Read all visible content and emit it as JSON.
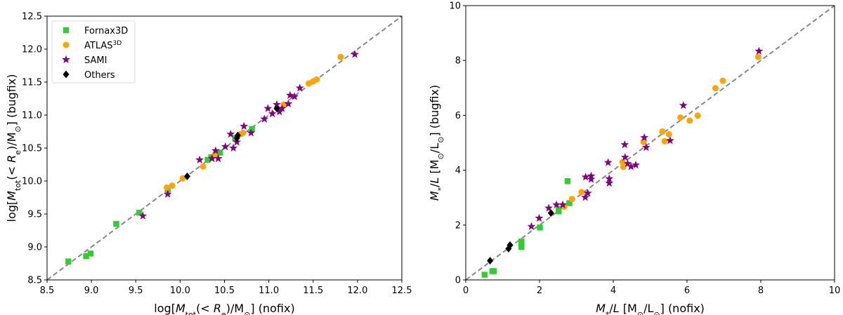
{
  "chart_data": [
    {
      "type": "scatter",
      "id": "left",
      "xlabel": {
        "pre": "log[",
        "M": "M",
        "sub": "tot",
        "mid": "(< ",
        "R": "R",
        "sub2": "e",
        "post": ")/M",
        "sun": "⊙",
        "end": "] (nofix)"
      },
      "ylabel": {
        "pre": "log[",
        "M": "M",
        "sub": "tot",
        "mid": "(< ",
        "R": "R",
        "sub2": "e",
        "post": ")/M",
        "sun": "⊙",
        "end": "] (bugfix)"
      },
      "xlim": [
        8.5,
        12.5
      ],
      "ylim": [
        8.5,
        12.5
      ],
      "xticks": [
        "8.5",
        "9.0",
        "9.5",
        "10.0",
        "10.5",
        "11.0",
        "11.5",
        "12.0",
        "12.5"
      ],
      "yticks": [
        "8.5",
        "9.0",
        "9.5",
        "10.0",
        "10.5",
        "11.0",
        "11.5",
        "12.0",
        "12.5"
      ],
      "one_to_one_line": true,
      "legend_position": "top-left",
      "series": [
        {
          "name": "Fornax3D",
          "sup": "",
          "marker": "square",
          "color": "#33cc33",
          "points": [
            [
              8.74,
              8.78
            ],
            [
              8.94,
              8.86
            ],
            [
              8.99,
              8.9
            ],
            [
              9.28,
              9.35
            ],
            [
              9.54,
              9.52
            ],
            [
              9.86,
              9.87
            ],
            [
              10.31,
              10.32
            ],
            [
              10.35,
              10.36
            ],
            [
              10.45,
              10.43
            ],
            [
              10.62,
              10.65
            ],
            [
              10.81,
              10.79
            ]
          ]
        },
        {
          "name": "ATLAS",
          "sup": "3D",
          "marker": "circle",
          "color": "#ffa500",
          "points": [
            [
              11.81,
              11.88
            ],
            [
              11.45,
              11.48
            ],
            [
              11.5,
              11.51
            ],
            [
              11.54,
              11.54
            ],
            [
              11.17,
              11.16
            ],
            [
              10.71,
              10.73
            ],
            [
              10.68,
              10.71
            ],
            [
              10.26,
              10.22
            ],
            [
              9.85,
              9.9
            ],
            [
              9.91,
              9.93
            ],
            [
              10.03,
              10.04
            ],
            [
              10.39,
              10.4
            ]
          ]
        },
        {
          "name": "SAMI",
          "sup": "",
          "marker": "star",
          "color": "#800080",
          "points": [
            [
              11.97,
              11.92
            ],
            [
              11.35,
              11.41
            ],
            [
              11.24,
              11.3
            ],
            [
              11.29,
              11.28
            ],
            [
              11.22,
              11.17
            ],
            [
              11.09,
              11.16
            ],
            [
              10.99,
              11.1
            ],
            [
              11.04,
              11.02
            ],
            [
              11.12,
              11.05
            ],
            [
              11.15,
              11.1
            ],
            [
              10.95,
              10.94
            ],
            [
              10.72,
              10.83
            ],
            [
              10.8,
              10.73
            ],
            [
              10.57,
              10.71
            ],
            [
              10.64,
              10.59
            ],
            [
              10.6,
              10.5
            ],
            [
              10.51,
              10.52
            ],
            [
              10.4,
              10.46
            ],
            [
              10.22,
              10.32
            ],
            [
              10.36,
              10.34
            ],
            [
              10.43,
              10.34
            ],
            [
              9.86,
              9.8
            ],
            [
              9.58,
              9.47
            ]
          ]
        },
        {
          "name": "Others",
          "sup": "",
          "marker": "diamond",
          "color": "#000000",
          "points": [
            [
              10.08,
              10.07
            ],
            [
              10.64,
              10.65
            ],
            [
              10.65,
              10.69
            ],
            [
              11.09,
              11.1
            ]
          ]
        }
      ]
    },
    {
      "type": "scatter",
      "id": "right",
      "xlabel": {
        "M": "M",
        "sub": "*",
        "mid": "/",
        "L": "L",
        "post": " [M",
        "sun": "⊙",
        "slash": "/L",
        "sun2": "⊙",
        "end": "] (nofix)"
      },
      "ylabel": {
        "M": "M",
        "sub": "*",
        "mid": "/",
        "L": "L",
        "post": " [M",
        "sun": "⊙",
        "slash": "/L",
        "sun2": "⊙",
        "end": "] (bugfix)"
      },
      "xlim": [
        0,
        10
      ],
      "ylim": [
        0,
        10
      ],
      "xticks": [
        "0",
        "2",
        "4",
        "6",
        "8",
        "10"
      ],
      "yticks": [
        "0",
        "2",
        "4",
        "6",
        "8",
        "10"
      ],
      "one_to_one_line": true,
      "series": [
        {
          "name": "Fornax3D",
          "marker": "square",
          "color": "#33cc33",
          "points": [
            [
              0.51,
              0.19
            ],
            [
              0.76,
              0.32
            ],
            [
              0.72,
              0.32
            ],
            [
              1.51,
              1.4
            ],
            [
              1.51,
              1.2
            ],
            [
              1.51,
              1.31
            ],
            [
              2.01,
              1.91
            ],
            [
              2.52,
              2.58
            ],
            [
              2.52,
              2.5
            ],
            [
              2.81,
              2.8
            ],
            [
              2.76,
              3.6
            ]
          ]
        },
        {
          "name": "ATLAS",
          "marker": "circle",
          "color": "#ffa500",
          "points": [
            [
              7.93,
              8.13
            ],
            [
              6.97,
              7.26
            ],
            [
              6.77,
              6.99
            ],
            [
              5.82,
              5.92
            ],
            [
              6.29,
              5.99
            ],
            [
              6.07,
              5.81
            ],
            [
              5.33,
              5.41
            ],
            [
              5.51,
              5.31
            ],
            [
              5.39,
              5.06
            ],
            [
              4.82,
              5.03
            ],
            [
              4.25,
              4.3
            ],
            [
              4.27,
              4.12
            ],
            [
              3.14,
              3.2
            ],
            [
              2.88,
              2.95
            ],
            [
              2.67,
              2.67
            ]
          ]
        },
        {
          "name": "SAMI",
          "marker": "star",
          "color": "#800080",
          "points": [
            [
              7.95,
              8.34
            ],
            [
              5.9,
              6.36
            ],
            [
              4.84,
              5.19
            ],
            [
              4.89,
              4.83
            ],
            [
              5.54,
              5.08
            ],
            [
              4.31,
              4.93
            ],
            [
              4.32,
              4.47
            ],
            [
              4.39,
              4.24
            ],
            [
              4.48,
              4.13
            ],
            [
              4.61,
              4.19
            ],
            [
              3.86,
              4.28
            ],
            [
              3.25,
              3.75
            ],
            [
              3.4,
              3.79
            ],
            [
              3.4,
              3.67
            ],
            [
              3.89,
              3.69
            ],
            [
              3.89,
              3.53
            ],
            [
              3.31,
              3.16
            ],
            [
              3.24,
              3.01
            ],
            [
              2.63,
              2.74
            ],
            [
              2.46,
              2.74
            ],
            [
              2.25,
              2.62
            ],
            [
              1.99,
              2.25
            ],
            [
              1.78,
              1.95
            ]
          ]
        },
        {
          "name": "Others",
          "marker": "diamond",
          "color": "#000000",
          "points": [
            [
              0.66,
              0.7
            ],
            [
              1.2,
              1.27
            ],
            [
              1.16,
              1.14
            ],
            [
              2.31,
              2.44
            ]
          ]
        }
      ]
    }
  ]
}
